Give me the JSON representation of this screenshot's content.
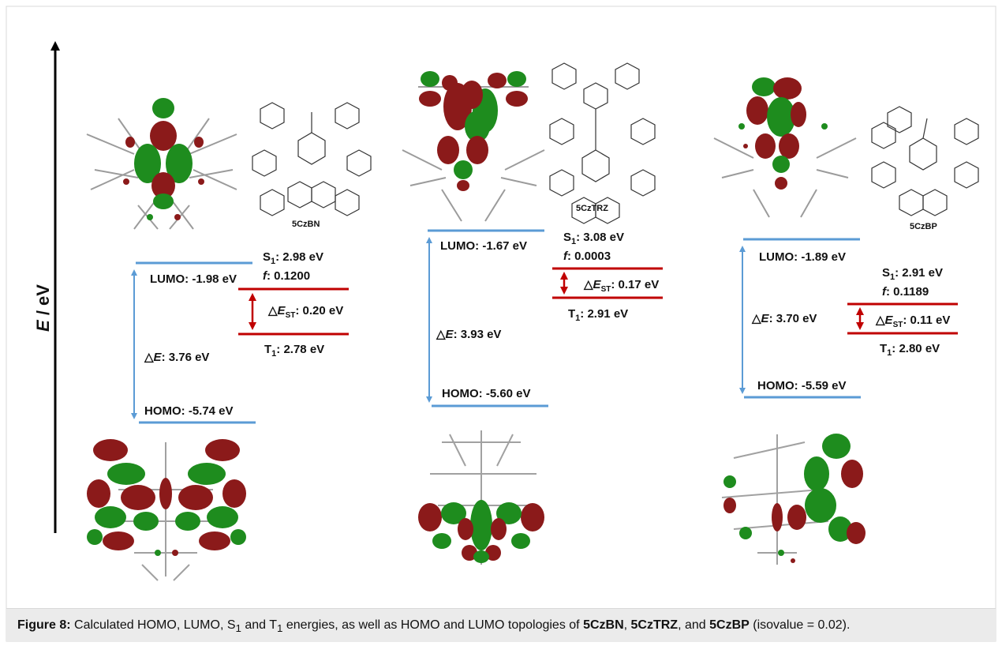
{
  "axis": {
    "label_italic": "E",
    "label_rest": " / eV"
  },
  "colors": {
    "homo_lumo": "#5b9bd5",
    "singlet_triplet": "#c00000",
    "lobe_red": "#8b1a1a",
    "lobe_green": "#1e8c1e",
    "axis": "#000000"
  },
  "compounds": [
    {
      "name": "5CzBN",
      "lumo": "LUMO: -1.98 eV",
      "homo": "HOMO: -5.74 eV",
      "gap_prefix": "△",
      "gap_var": "E",
      "gap_value": ": 3.76 eV",
      "s1_label": "S",
      "s1_sub": "1",
      "s1_value": ": 2.98 eV",
      "f_label": "f",
      "f_value": ": 0.1200",
      "dest_prefix": "△",
      "dest_var": "E",
      "dest_sub": "ST",
      "dest_value": ": 0.20 eV",
      "t1_label": "T",
      "t1_sub": "1",
      "t1_value": ": 2.78 eV"
    },
    {
      "name": "5CzTRZ",
      "lumo": "LUMO: -1.67 eV",
      "homo": "HOMO: -5.60 eV",
      "gap_prefix": "△",
      "gap_var": "E",
      "gap_value": ": 3.93 eV",
      "s1_label": "S",
      "s1_sub": "1",
      "s1_value": ": 3.08 eV",
      "f_label": "f",
      "f_value": ": 0.0003",
      "dest_prefix": "△",
      "dest_var": "E",
      "dest_sub": "ST",
      "dest_value": ": 0.17 eV",
      "t1_label": "T",
      "t1_sub": "1",
      "t1_value": ": 2.91 eV"
    },
    {
      "name": "5CzBP",
      "lumo": "LUMO: -1.89 eV",
      "homo": "HOMO: -5.59 eV",
      "gap_prefix": "△",
      "gap_var": "E",
      "gap_value": ": 3.70 eV",
      "s1_label": "S",
      "s1_sub": "1",
      "s1_value": ": 2.91 eV",
      "f_label": "f",
      "f_value": ": 0.1189",
      "dest_prefix": "△",
      "dest_var": "E",
      "dest_sub": "ST",
      "dest_value": ": 0.11 eV",
      "t1_label": "T",
      "t1_sub": "1",
      "t1_value": ": 2.80 eV"
    }
  ],
  "caption": {
    "label": "Figure 8:",
    "t1": " Calculated HOMO, LUMO, S",
    "sub1": "1",
    "t2": " and T",
    "sub2": "1",
    "t3": " energies, as well as HOMO and LUMO topologies of ",
    "c1": "5CzBN",
    "t4": ", ",
    "c2": "5CzTRZ",
    "t5": ", and ",
    "c3": "5CzBP",
    "t6": " (isovalue = 0.02)."
  }
}
